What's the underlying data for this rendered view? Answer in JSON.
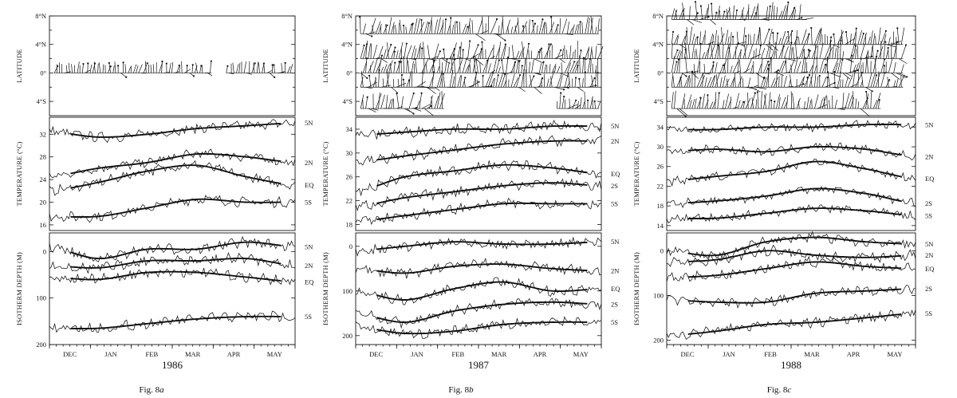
{
  "figures": [
    {
      "caption": "Fig. 8",
      "caption_letter": "a",
      "year": "1986",
      "months": [
        "DEC",
        "JAN",
        "FEB",
        "MAR",
        "APR",
        "MAY"
      ],
      "wind": {
        "ylabel": "LATITUDE",
        "ticks": [
          "8°N",
          "4°N",
          "0°",
          "4°S"
        ],
        "rows": [
          {
            "lat": 0,
            "segments": [
              [
                0.02,
                0.66
              ],
              [
                0.72,
                0.99
              ]
            ]
          }
        ]
      },
      "temp": {
        "ylabel": "TEMPERATURE (°C)",
        "ticks": [
          "32",
          "28",
          "24",
          "20",
          "16"
        ]
      },
      "depth": {
        "ylabel": "ISOTHERM DEPTH (M)",
        "ticks": [
          "0",
          "100",
          "200"
        ]
      },
      "temp_labels": [
        "5N",
        "2N",
        "EQ",
        "5S"
      ],
      "depth_labels": [
        "5N",
        "2N",
        "EQ",
        "5S"
      ]
    },
    {
      "caption": "Fig. 8",
      "caption_letter": "b",
      "year": "1987",
      "months": [
        "DEC",
        "JAN",
        "FEB",
        "MAR",
        "APR",
        "MAY"
      ],
      "wind": {
        "ylabel": "LATITUDE",
        "ticks": [
          "8°N",
          "4°N",
          "0°",
          "4°S"
        ],
        "rows": [
          {
            "lat": 5.5,
            "segments": [
              [
                0.02,
                0.99
              ]
            ]
          },
          {
            "lat": 2,
            "segments": [
              [
                0.02,
                0.99
              ]
            ]
          },
          {
            "lat": 0,
            "segments": [
              [
                0.02,
                0.99
              ]
            ]
          },
          {
            "lat": -2,
            "segments": [
              [
                0.02,
                0.99
              ]
            ]
          },
          {
            "lat": -5,
            "segments": [
              [
                0.02,
                0.36
              ],
              [
                0.82,
                0.99
              ]
            ]
          }
        ]
      },
      "temp": {
        "ylabel": "TEMPERATURE (°C)",
        "ticks": [
          "34",
          "30",
          "26",
          "22",
          "18"
        ]
      },
      "depth": {
        "ylabel": "ISOTHERM DEPTH (M)",
        "ticks": [
          "0",
          "100",
          "200"
        ]
      },
      "temp_labels": [
        "5N",
        "2N",
        "EQ",
        "2S",
        "5S"
      ],
      "depth_labels": [
        "5N",
        "2N",
        "EQ",
        "2S",
        "5S"
      ]
    },
    {
      "caption": "Fig. 8",
      "caption_letter": "c",
      "year": "1988",
      "months": [
        "DEC",
        "JAN",
        "FEB",
        "MAR",
        "APR",
        "MAY"
      ],
      "wind": {
        "ylabel": "LATITUDE",
        "ticks": [
          "8°N",
          "4°N",
          "0°",
          "4°S"
        ],
        "rows": [
          {
            "lat": 7.5,
            "segments": [
              [
                0.02,
                0.56
              ]
            ]
          },
          {
            "lat": 4,
            "segments": [
              [
                0.02,
                0.95
              ]
            ]
          },
          {
            "lat": 2,
            "segments": [
              [
                0.02,
                0.95
              ]
            ]
          },
          {
            "lat": 0,
            "segments": [
              [
                0.02,
                0.95
              ]
            ]
          },
          {
            "lat": -2,
            "segments": [
              [
                0.02,
                0.95
              ]
            ]
          },
          {
            "lat": -5,
            "segments": [
              [
                0.02,
                0.86
              ]
            ]
          }
        ]
      },
      "temp": {
        "ylabel": "TEMPERATURE (°C)",
        "ticks": [
          "34",
          "30",
          "26",
          "22",
          "18",
          "14"
        ]
      },
      "depth": {
        "ylabel": "ISOTHERM DEPTH (M)",
        "ticks": [
          "0",
          "100",
          "200"
        ]
      },
      "temp_labels": [
        "5N",
        "2N",
        "EQ",
        "2S",
        "5S"
      ],
      "depth_labels": [
        "5N",
        "2N",
        "EQ",
        "2S",
        "5S"
      ]
    }
  ],
  "chart_data": [
    {
      "type": "line",
      "title": "Fig. 8a",
      "xlabel": "1986",
      "ylabel": "TEMPERATURE (°C)",
      "categories": [
        "DEC",
        "JAN",
        "FEB",
        "MAR",
        "APR",
        "MAY"
      ],
      "ylim": [
        15,
        35
      ],
      "series": [
        {
          "name": "5N",
          "values": [
            32.5,
            31.5,
            32.0,
            33.0,
            33.5,
            34.0
          ]
        },
        {
          "name": "2N",
          "values": [
            24.5,
            26.0,
            27.0,
            28.5,
            28.0,
            27.0
          ]
        },
        {
          "name": "EQ",
          "values": [
            22.0,
            23.5,
            25.5,
            26.5,
            24.5,
            23.0
          ]
        },
        {
          "name": "5S",
          "values": [
            17.5,
            17.5,
            19.0,
            20.5,
            20.0,
            20.0
          ]
        }
      ]
    },
    {
      "type": "line",
      "title": "Fig. 8a",
      "xlabel": "1986",
      "ylabel": "ISOTHERM DEPTH (M)",
      "categories": [
        "DEC",
        "JAN",
        "FEB",
        "MAR",
        "APR",
        "MAY"
      ],
      "ylim": [
        200,
        -40
      ],
      "series": [
        {
          "name": "5N",
          "values": [
            -10,
            15,
            -5,
            -5,
            -20,
            -10
          ]
        },
        {
          "name": "2N",
          "values": [
            30,
            35,
            20,
            20,
            15,
            30
          ]
        },
        {
          "name": "EQ",
          "values": [
            55,
            60,
            45,
            45,
            55,
            65
          ]
        },
        {
          "name": "5S",
          "values": [
            165,
            165,
            155,
            145,
            140,
            140
          ]
        }
      ]
    },
    {
      "type": "line",
      "title": "Fig. 8b",
      "xlabel": "1987",
      "ylabel": "TEMPERATURE (°C)",
      "categories": [
        "DEC",
        "JAN",
        "FEB",
        "MAR",
        "APR",
        "MAY"
      ],
      "ylim": [
        17,
        36
      ],
      "series": [
        {
          "name": "5N",
          "values": [
            33.0,
            33.5,
            34.0,
            34.0,
            34.5,
            34.5
          ]
        },
        {
          "name": "2N",
          "values": [
            28.5,
            29.5,
            30.5,
            31.5,
            32.0,
            32.0
          ]
        },
        {
          "name": "EQ",
          "values": [
            23.5,
            26.0,
            27.0,
            28.0,
            27.5,
            26.5
          ]
        },
        {
          "name": "2S",
          "values": [
            21.0,
            22.5,
            23.5,
            24.5,
            25.0,
            24.5
          ]
        },
        {
          "name": "5S",
          "values": [
            18.5,
            19.5,
            20.5,
            21.5,
            21.5,
            21.5
          ]
        }
      ]
    },
    {
      "type": "line",
      "title": "Fig. 8b",
      "xlabel": "1987",
      "ylabel": "ISOTHERM DEPTH (M)",
      "categories": [
        "DEC",
        "JAN",
        "FEB",
        "MAR",
        "APR",
        "MAY"
      ],
      "ylim": [
        220,
        -30
      ],
      "series": [
        {
          "name": "5N",
          "values": [
            10,
            0,
            -10,
            -5,
            -5,
            -10
          ]
        },
        {
          "name": "2N",
          "values": [
            50,
            60,
            45,
            40,
            50,
            55
          ]
        },
        {
          "name": "EQ",
          "values": [
            100,
            120,
            95,
            80,
            100,
            95
          ]
        },
        {
          "name": "2S",
          "values": [
            150,
            170,
            145,
            130,
            125,
            130
          ]
        },
        {
          "name": "5S",
          "values": [
            180,
            195,
            190,
            175,
            170,
            170
          ]
        }
      ]
    },
    {
      "type": "line",
      "title": "Fig. 8c",
      "xlabel": "1988",
      "ylabel": "TEMPERATURE (°C)",
      "categories": [
        "DEC",
        "JAN",
        "FEB",
        "MAR",
        "APR",
        "MAY"
      ],
      "ylim": [
        13,
        36
      ],
      "series": [
        {
          "name": "5N",
          "values": [
            33.5,
            33.5,
            34.0,
            34.0,
            34.5,
            34.5
          ]
        },
        {
          "name": "2N",
          "values": [
            29.0,
            29.5,
            29.0,
            30.0,
            29.5,
            28.0
          ]
        },
        {
          "name": "EQ",
          "values": [
            23.0,
            24.0,
            25.0,
            27.0,
            25.5,
            23.5
          ]
        },
        {
          "name": "2S",
          "values": [
            18.5,
            19.0,
            20.0,
            21.5,
            20.5,
            18.5
          ]
        },
        {
          "name": "5S",
          "values": [
            15.5,
            15.5,
            16.5,
            17.5,
            17.0,
            16.0
          ]
        }
      ]
    },
    {
      "type": "line",
      "title": "Fig. 8c",
      "xlabel": "1988",
      "ylabel": "ISOTHERM DEPTH (M)",
      "categories": [
        "DEC",
        "JAN",
        "FEB",
        "MAR",
        "APR",
        "MAY"
      ],
      "ylim": [
        210,
        -40
      ],
      "series": [
        {
          "name": "5N",
          "values": [
            0,
            10,
            -20,
            -30,
            -20,
            -15
          ]
        },
        {
          "name": "2N",
          "values": [
            25,
            20,
            0,
            10,
            15,
            10
          ]
        },
        {
          "name": "EQ",
          "values": [
            60,
            55,
            40,
            25,
            35,
            40
          ]
        },
        {
          "name": "2S",
          "values": [
            110,
            115,
            115,
            95,
            90,
            85
          ]
        },
        {
          "name": "5S",
          "values": [
            190,
            180,
            165,
            160,
            150,
            140
          ]
        }
      ]
    }
  ]
}
